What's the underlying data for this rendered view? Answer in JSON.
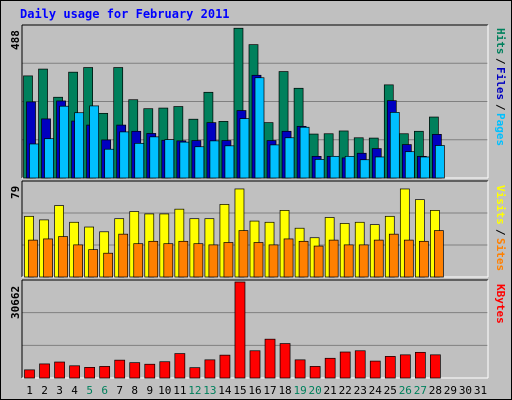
{
  "title": "Daily usage for February 2011",
  "chart_data": {
    "type": "bar",
    "days": [
      "1",
      "2",
      "3",
      "4",
      "5",
      "6",
      "7",
      "8",
      "9",
      "10",
      "11",
      "12",
      "13",
      "14",
      "15",
      "16",
      "17",
      "18",
      "19",
      "20",
      "21",
      "22",
      "23",
      "24",
      "25",
      "26",
      "27",
      "28",
      "29",
      "30",
      "31"
    ],
    "weekend_days": [
      "5",
      "6",
      "12",
      "13",
      "19",
      "20",
      "26",
      "27"
    ],
    "colors": {
      "hits": "#00805c",
      "files": "#0000c0",
      "pages": "#00c0ff",
      "visits": "#ffff00",
      "sites": "#ff8000",
      "kbytes": "#ff0000",
      "weekday_label": "#000000",
      "weekend_label": "#00805c"
    },
    "panels": [
      {
        "name": "hits-files-pages",
        "max_label": "488",
        "ylim": [
          0,
          488
        ],
        "legend": [
          "Pages",
          "Files",
          "Hits"
        ],
        "series": [
          {
            "name": "Hits",
            "values": [
              330,
              352,
              261,
              342,
              357,
              209,
              357,
              253,
              224,
              226,
              231,
              190,
              277,
              183,
              484,
              431,
              179,
              344,
              290,
              142,
              143,
              152,
              130,
              129,
              301,
              143,
              151,
              197,
              null,
              null,
              null
            ]
          },
          {
            "name": "Files",
            "values": [
              246,
              191,
              249,
              184,
              171,
              123,
              171,
              151,
              144,
              122,
              120,
              121,
              179,
              121,
              218,
              332,
              121,
              151,
              167,
              70,
              70,
              65,
              80,
              95,
              250,
              108,
              70,
              141,
              null,
              null,
              null
            ]
          },
          {
            "name": "Pages",
            "values": [
              110,
              127,
              232,
              211,
              233,
              93,
              149,
              112,
              133,
              124,
              116,
              101,
              120,
              104,
              192,
              324,
              107,
              130,
              164,
              60,
              70,
              70,
              59,
              68,
              212,
              85,
              68,
              105,
              null,
              null,
              null
            ]
          }
        ]
      },
      {
        "name": "visits-sites",
        "max_label": "79",
        "ylim": [
          0,
          79
        ],
        "legend": [
          "Sites",
          "Visits"
        ],
        "series": [
          {
            "name": "Visits",
            "values": [
              51,
              48,
              60,
              46,
              42,
              38,
              49,
              55,
              53,
              53,
              57,
              49,
              49,
              61,
              74,
              47,
              46,
              56,
              41,
              33,
              50,
              45,
              46,
              44,
              51,
              74,
              65,
              56,
              null,
              null,
              null
            ]
          },
          {
            "name": "Sites",
            "values": [
              31,
              32,
              34,
              27,
              23,
              20,
              36,
              28,
              30,
              28,
              30,
              28,
              27,
              29,
              39,
              29,
              27,
              32,
              30,
              26,
              31,
              27,
              27,
              31,
              36,
              31,
              30,
              39,
              null,
              null,
              null
            ]
          }
        ]
      },
      {
        "name": "kbytes",
        "max_label": "30662",
        "ylim": [
          0,
          30662
        ],
        "legend": [
          "KBytes"
        ],
        "series": [
          {
            "name": "KBytes",
            "values": [
              2600,
              4500,
              5100,
              3900,
              3400,
              3700,
              5700,
              4900,
              4400,
              5200,
              7800,
              3300,
              5800,
              7300,
              30662,
              8700,
              12400,
              11000,
              5800,
              3700,
              6300,
              8300,
              8700,
              5400,
              6900,
              7400,
              8200,
              7400,
              null,
              null,
              null
            ]
          }
        ]
      }
    ]
  }
}
